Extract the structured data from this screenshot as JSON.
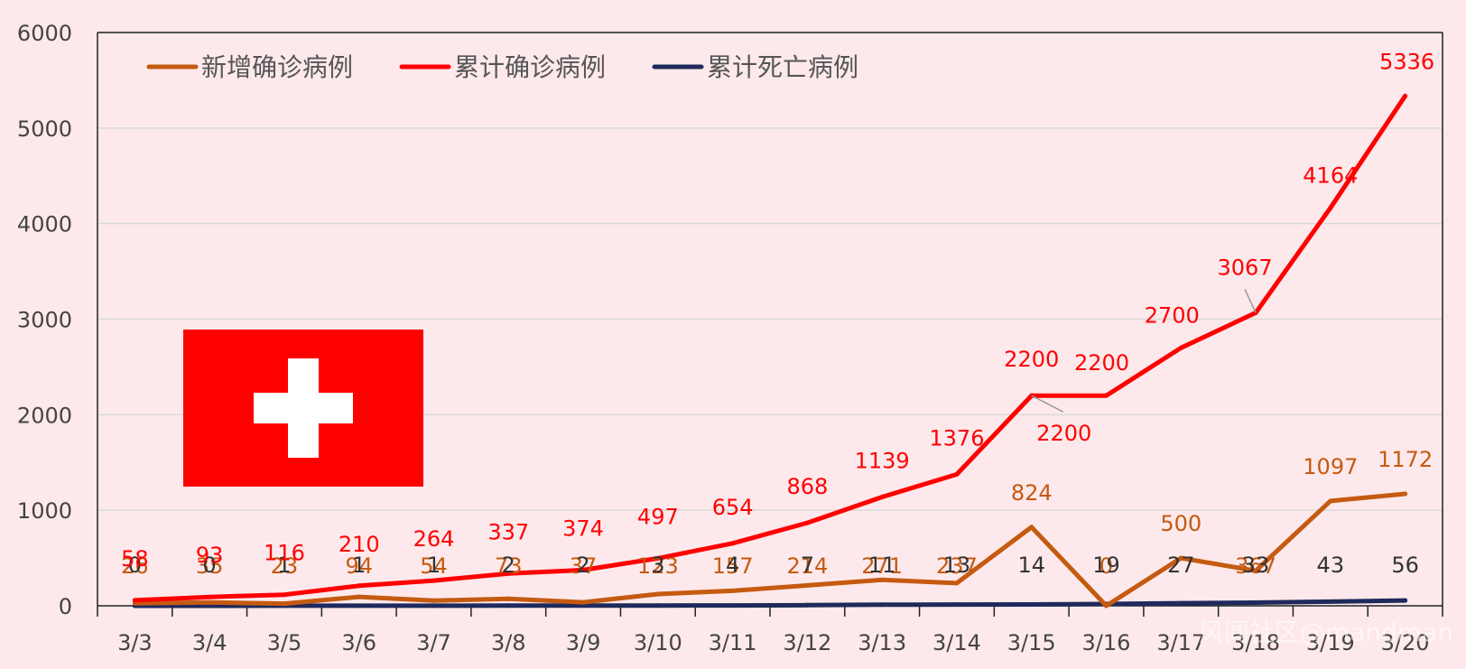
{
  "chart_data": {
    "type": "line",
    "categories": [
      "3/3",
      "3/4",
      "3/5",
      "3/6",
      "3/7",
      "3/8",
      "3/9",
      "3/10",
      "3/11",
      "3/12",
      "3/13",
      "3/14",
      "3/15",
      "3/16",
      "3/17",
      "3/18",
      "3/19",
      "3/20"
    ],
    "ylim": [
      0,
      6000
    ],
    "yticks": [
      0,
      1000,
      2000,
      3000,
      4000,
      5000,
      6000
    ],
    "grid": true,
    "legend_position": "top-left",
    "series": [
      {
        "name": "新增确诊病例",
        "color": "#c55a11",
        "values": [
          26,
          35,
          23,
          94,
          54,
          73,
          37,
          123,
          157,
          214,
          271,
          237,
          824,
          0,
          500,
          367,
          1097,
          1172
        ]
      },
      {
        "name": "累计确诊病例",
        "color": "#ff0000",
        "values": [
          58,
          93,
          116,
          210,
          264,
          337,
          374,
          497,
          654,
          868,
          1139,
          1376,
          2200,
          2200,
          2700,
          3067,
          4164,
          5336
        ],
        "label_extra": [
          {
            "index": 12,
            "text": "2200"
          }
        ]
      },
      {
        "name": "累计死亡病例",
        "color": "#1f2a5c",
        "values": [
          0,
          0,
          1,
          1,
          1,
          2,
          2,
          3,
          4,
          7,
          11,
          13,
          14,
          19,
          27,
          33,
          43,
          56
        ]
      }
    ]
  },
  "watermark": "风闻社区@mandman",
  "flag": {
    "background": "#ff0000",
    "cross": "#ffffff",
    "icon": "swiss-flag-icon"
  }
}
